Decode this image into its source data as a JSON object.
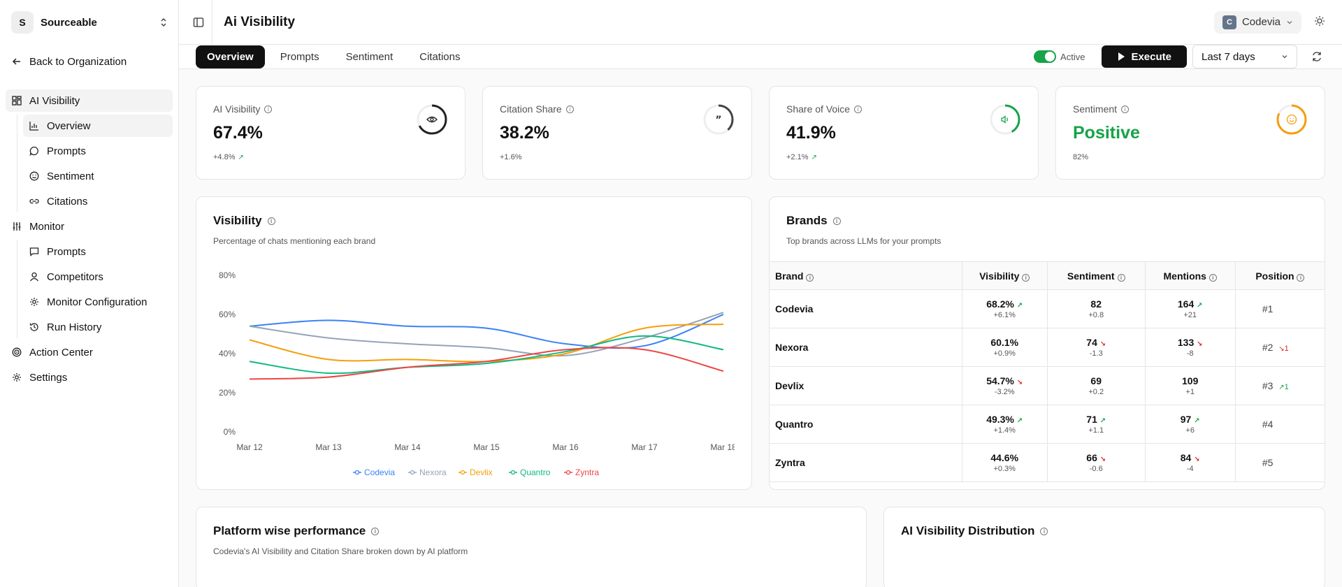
{
  "sidebar": {
    "org_initial": "S",
    "org_name": "Sourceable",
    "back_label": "Back to Organization",
    "sections": [
      {
        "label": "AI Visibility",
        "items": [
          "Overview",
          "Prompts",
          "Sentiment",
          "Citations"
        ]
      },
      {
        "label": "Monitor",
        "items": [
          "Prompts",
          "Competitors",
          "Monitor Configuration",
          "Run History"
        ]
      }
    ],
    "action_center": "Action Center",
    "settings": "Settings"
  },
  "header": {
    "title": "Ai Visibility",
    "brand_initial": "C",
    "brand_name": "Codevia"
  },
  "tabs": [
    "Overview",
    "Prompts",
    "Sentiment",
    "Citations"
  ],
  "toolbar": {
    "active_label": "Active",
    "execute_label": "Execute",
    "range_label": "Last 7 days"
  },
  "stats": [
    {
      "label": "AI Visibility",
      "value": "67.4%",
      "sub": "+4.8%",
      "trend": "up",
      "icon": "eye-icon",
      "progress": 0.674,
      "color": "#222222"
    },
    {
      "label": "Citation Share",
      "value": "38.2%",
      "sub": "+1.6%",
      "trend": "none",
      "icon": "quote-icon",
      "progress": 0.382,
      "color": "#444444"
    },
    {
      "label": "Share of Voice",
      "value": "41.9%",
      "sub": "+2.1%",
      "trend": "up",
      "icon": "speaker-icon",
      "progress": 0.419,
      "color": "#16a34a"
    },
    {
      "label": "Sentiment",
      "value": "Positive",
      "sub": "82%",
      "trend": "none",
      "icon": "smile-icon",
      "progress": 0.82,
      "color": "#f59e0b"
    }
  ],
  "visibility": {
    "title": "Visibility",
    "subtitle": "Percentage of chats mentioning each brand"
  },
  "chart_data": {
    "type": "line",
    "x": [
      "Mar 12",
      "Mar 13",
      "Mar 14",
      "Mar 15",
      "Mar 16",
      "Mar 17",
      "Mar 18"
    ],
    "ylim": [
      0,
      80
    ],
    "yticks": [
      "0%",
      "20%",
      "40%",
      "60%",
      "80%"
    ],
    "yticks_values": [
      0,
      20,
      40,
      60,
      80
    ],
    "legend_position": "bottom",
    "series": [
      {
        "name": "Codevia",
        "color": "#3b82f6",
        "values": [
          54,
          57,
          54,
          53,
          45,
          44,
          60
        ]
      },
      {
        "name": "Nexora",
        "color": "#94a3b8",
        "values": [
          54,
          48,
          45,
          43,
          39,
          48,
          61
        ]
      },
      {
        "name": "Devlix",
        "color": "#f59e0b",
        "values": [
          47,
          37,
          37,
          36,
          40,
          53,
          55
        ]
      },
      {
        "name": "Quantro",
        "color": "#10b981",
        "values": [
          36,
          30,
          33,
          35,
          41,
          49,
          42
        ]
      },
      {
        "name": "Zyntra",
        "color": "#ef4444",
        "values": [
          27,
          28,
          33,
          36,
          42,
          42,
          31
        ]
      }
    ]
  },
  "brands": {
    "title": "Brands",
    "subtitle": "Top brands across LLMs for your prompts",
    "headers": [
      "Brand",
      "Visibility",
      "Sentiment",
      "Mentions",
      "Position"
    ],
    "rows": [
      {
        "brand": "Codevia",
        "vis": "68.2%",
        "vis_d": "+6.1%",
        "vis_t": "up",
        "sent": "82",
        "sent_d": "+0.8",
        "sent_t": "none",
        "men": "164",
        "men_d": "+21",
        "men_t": "up",
        "pos": "#1",
        "pos_d": "",
        "pos_t": "none"
      },
      {
        "brand": "Nexora",
        "vis": "60.1%",
        "vis_d": "+0.9%",
        "vis_t": "none",
        "sent": "74",
        "sent_d": "-1.3",
        "sent_t": "down",
        "men": "133",
        "men_d": "-8",
        "men_t": "down",
        "pos": "#2",
        "pos_d": "1",
        "pos_t": "down"
      },
      {
        "brand": "Devlix",
        "vis": "54.7%",
        "vis_d": "-3.2%",
        "vis_t": "down",
        "sent": "69",
        "sent_d": "+0.2",
        "sent_t": "none",
        "men": "109",
        "men_d": "+1",
        "men_t": "none",
        "pos": "#3",
        "pos_d": "1",
        "pos_t": "up"
      },
      {
        "brand": "Quantro",
        "vis": "49.3%",
        "vis_d": "+1.4%",
        "vis_t": "up",
        "sent": "71",
        "sent_d": "+1.1",
        "sent_t": "up",
        "men": "97",
        "men_d": "+6",
        "men_t": "up",
        "pos": "#4",
        "pos_d": "",
        "pos_t": "none"
      },
      {
        "brand": "Zyntra",
        "vis": "44.6%",
        "vis_d": "+0.3%",
        "vis_t": "none",
        "sent": "66",
        "sent_d": "-0.6",
        "sent_t": "down",
        "men": "84",
        "men_d": "-4",
        "men_t": "down",
        "pos": "#5",
        "pos_d": "",
        "pos_t": "none"
      }
    ]
  },
  "platform": {
    "title": "Platform wise performance",
    "subtitle": "Codevia's AI Visibility and Citation Share broken down by AI platform"
  },
  "distribution": {
    "title": "AI Visibility Distribution"
  }
}
